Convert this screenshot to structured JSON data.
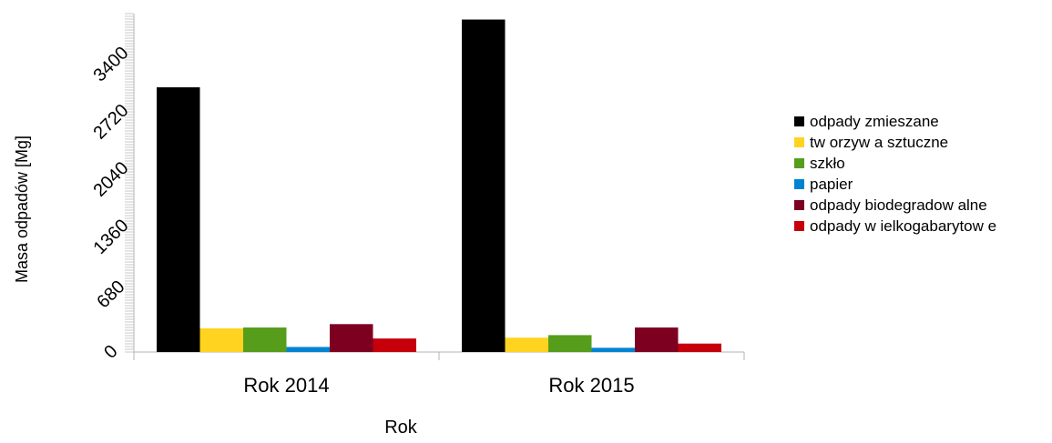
{
  "chart_data": {
    "type": "bar",
    "title": "",
    "xlabel": "Rok",
    "ylabel": "Masa odpadów [Mg]",
    "categories": [
      "Rok 2014",
      "Rok 2015"
    ],
    "ylim": [
      0,
      4000
    ],
    "yticks": [
      "0",
      "680",
      "1360",
      "2040",
      "2720",
      "3400"
    ],
    "grid": false,
    "legend_position": "right",
    "series": [
      {
        "name": "odpady zmieszane",
        "color": "#000000",
        "values": [
          3130,
          3930
        ]
      },
      {
        "name": "tw orzyw a sztuczne",
        "color": "#ffd320",
        "values": [
          280,
          170
        ]
      },
      {
        "name": "szkło",
        "color": "#579d1c",
        "values": [
          290,
          200
        ]
      },
      {
        "name": "papier",
        "color": "#0084d1",
        "values": [
          60,
          50
        ]
      },
      {
        "name": "odpady biodegradow alne",
        "color": "#7e0021",
        "values": [
          330,
          290
        ]
      },
      {
        "name": "odpady w ielkogabarytow e",
        "color": "#c5000b",
        "values": [
          160,
          100
        ]
      }
    ]
  }
}
